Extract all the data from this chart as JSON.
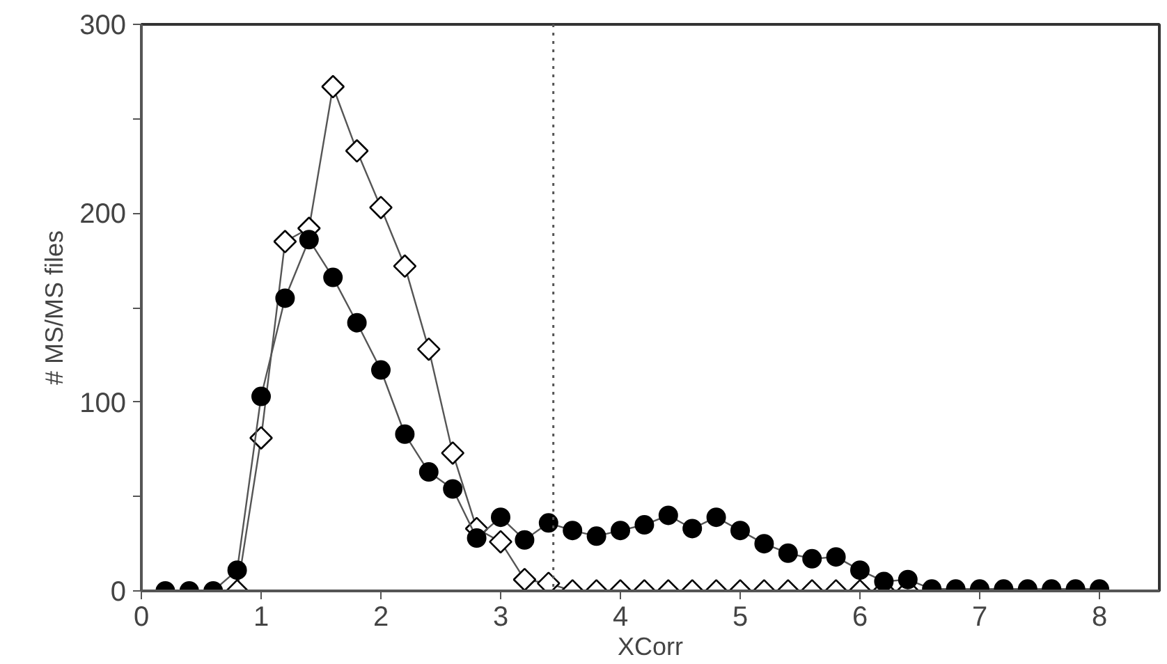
{
  "chart_data": {
    "type": "line",
    "xlabel": "XCorr",
    "ylabel": "# MS/MS files",
    "xlim": [
      0,
      8.5
    ],
    "xticks": [
      0,
      1,
      2,
      3,
      4,
      5,
      6,
      7,
      8
    ],
    "ylim": [
      0,
      300
    ],
    "yticks": [
      0,
      {
        "value": 50,
        "label": null
      },
      100,
      {
        "value": 150,
        "label": null
      },
      200,
      {
        "value": 250,
        "label": null
      },
      300
    ],
    "grid": false,
    "line_style": "solid",
    "series": [
      {
        "marker": "diamond",
        "color": "#000000",
        "x": [
          0.8,
          1.0,
          1.2,
          1.4,
          1.6,
          1.8,
          2.0,
          2.2,
          2.4,
          2.6,
          2.8,
          3.0,
          3.2,
          3.4,
          3.6,
          3.8,
          4.0,
          4.2,
          4.4,
          4.6,
          4.8,
          5.0,
          5.2,
          5.4,
          5.6,
          5.8,
          6.0,
          6.2,
          6.4
        ],
        "values": [
          0,
          81,
          185,
          192,
          267,
          233,
          203,
          172,
          128,
          73,
          33,
          26,
          6,
          4,
          0,
          0,
          0,
          0,
          0,
          0,
          0,
          0,
          0,
          0,
          0,
          0,
          0,
          0,
          0
        ]
      },
      {
        "marker": "circle",
        "color": "#000000",
        "x": [
          0.2,
          0.4,
          0.6,
          0.8,
          1.0,
          1.2,
          1.4,
          1.6,
          1.8,
          2.0,
          2.2,
          2.4,
          2.6,
          2.8,
          3.0,
          3.2,
          3.4,
          3.6,
          3.8,
          4.0,
          4.2,
          4.4,
          4.6,
          4.8,
          5.0,
          5.2,
          5.4,
          5.6,
          5.8,
          6.0,
          6.2,
          6.4,
          6.6,
          6.8,
          7.0,
          7.2,
          7.4,
          7.6,
          7.8,
          8.0
        ],
        "values": [
          0,
          0,
          0,
          11,
          103,
          155,
          186,
          166,
          142,
          117,
          83,
          63,
          54,
          28,
          39,
          27,
          36,
          32,
          29,
          32,
          35,
          40,
          33,
          39,
          32,
          25,
          20,
          17,
          18,
          11,
          5,
          6,
          1,
          1,
          1,
          1,
          1,
          1,
          1,
          1
        ]
      }
    ],
    "ref_lines": [
      {
        "axis": "x",
        "value": 3.44,
        "line_style": "dotted",
        "color": "#555555"
      }
    ]
  }
}
